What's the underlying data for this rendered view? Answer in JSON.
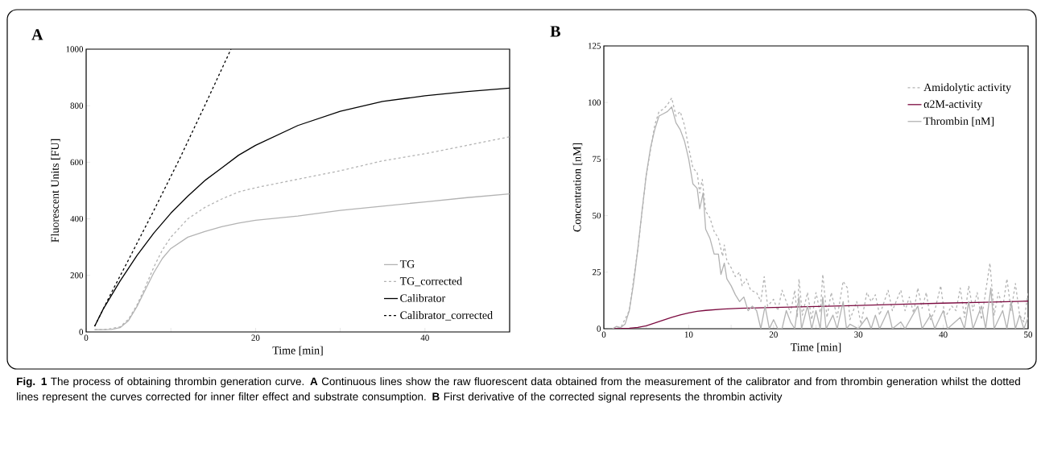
{
  "chart_data": [
    {
      "type": "line",
      "title": "A",
      "xlabel": "Time [min]",
      "ylabel": "Fluorescent Units [FU]",
      "xlim": [
        0,
        50
      ],
      "xticks": [
        0,
        20,
        40,
        {
          "value": 10,
          "label": null
        },
        {
          "value": 30,
          "label": null
        }
      ],
      "ylim": [
        0,
        1000
      ],
      "yticks": [
        0,
        200,
        400,
        600,
        800,
        1000
      ],
      "legend": "bottom right",
      "series": [
        {
          "name": "TG",
          "color": "#b3b3b3",
          "line_style": "solid",
          "x": [
            1,
            2,
            3,
            4,
            5,
            6,
            7,
            8,
            9,
            10,
            12,
            14,
            16,
            18,
            20,
            25,
            30,
            35,
            40,
            45,
            50
          ],
          "values": [
            8,
            8,
            9,
            15,
            40,
            90,
            150,
            210,
            260,
            295,
            335,
            355,
            372,
            385,
            395,
            410,
            430,
            445,
            460,
            475,
            488
          ]
        },
        {
          "name": "TG_corrected",
          "color": "#b3b3b3",
          "line_style": "dashed",
          "x": [
            1,
            2,
            3,
            4,
            5,
            6,
            7,
            8,
            9,
            10,
            12,
            14,
            16,
            18,
            20,
            25,
            30,
            35,
            40,
            45,
            50
          ],
          "values": [
            8,
            8,
            12,
            18,
            45,
            95,
            160,
            230,
            290,
            335,
            400,
            440,
            470,
            495,
            510,
            540,
            570,
            605,
            630,
            660,
            690
          ]
        },
        {
          "name": "Calibrator",
          "color": "#000000",
          "line_style": "solid",
          "x": [
            1,
            2,
            4,
            6,
            8,
            10,
            12,
            14,
            16,
            18,
            20,
            25,
            30,
            35,
            40,
            45,
            50
          ],
          "values": [
            20,
            80,
            180,
            270,
            350,
            420,
            480,
            535,
            580,
            625,
            660,
            730,
            780,
            815,
            835,
            850,
            862
          ]
        },
        {
          "name": "Calibrator_corrected",
          "color": "#000000",
          "line_style": "dashed",
          "x": [
            1,
            3,
            5,
            8,
            11,
            14,
            17.1
          ],
          "values": [
            20,
            140,
            255,
            430,
            610,
            800,
            1000
          ]
        }
      ],
      "annotations": [
        "**Fig. 1** The process of obtaining thrombin generation curve. **A** Continuous lines show the raw fluorescent data obtained from the measurement of the calibrator and from thrombin generation whilst the dotted lines represent the curves corrected for inner filter effect and substrate consumption. **B** First derivative of the corrected signal represents the thrombin activity"
      ]
    },
    {
      "type": "line",
      "title": "B",
      "xlabel": "Time [min]",
      "ylabel": "Concentration [nM]",
      "xlim": [
        0,
        50
      ],
      "xticks": [
        0,
        10,
        20,
        30,
        40,
        50,
        {
          "value": 5,
          "label": null
        },
        {
          "value": 15,
          "label": null
        },
        {
          "value": 25,
          "label": null
        },
        {
          "value": 35,
          "label": null
        },
        {
          "value": 45,
          "label": null
        }
      ],
      "ylim": [
        0,
        125
      ],
      "yticks": [
        0,
        25,
        50,
        75,
        100,
        125
      ],
      "legend": "top right",
      "series": [
        {
          "name": "Amidolytic activity",
          "color": "#b3b3b3",
          "line_style": "dashed",
          "x": [
            1,
            2,
            3,
            4,
            5,
            6,
            6.5,
            7,
            7.5,
            8,
            8.5,
            9,
            9.5,
            10,
            10.5,
            11,
            11.3,
            11.6,
            12,
            12.5,
            13,
            13.5,
            14,
            14.2,
            14.5,
            15,
            15.5,
            16,
            16.3,
            16.8,
            17.3,
            18,
            18.5,
            18.9,
            19.3,
            20,
            20.5,
            21,
            21.5,
            22,
            22.5,
            22.8,
            23,
            23.4,
            24,
            24.5,
            25,
            25.5,
            25.8,
            26.3,
            26.8,
            27.5,
            28.2,
            28.7,
            29,
            29.8,
            30.3,
            31,
            31.5,
            32,
            32.5,
            33.5,
            34,
            35,
            35.5,
            36,
            36.5,
            37,
            37.5,
            38,
            38.5,
            39,
            39.7,
            40.2,
            41,
            41.5,
            42,
            42.5,
            43,
            43.5,
            44,
            44.5,
            45.5,
            46,
            46.5,
            47,
            47.5,
            48,
            48.5,
            49,
            49.5,
            50
          ],
          "values": [
            0,
            0.5,
            8,
            35,
            68,
            90,
            96,
            97,
            99,
            102,
            94,
            96,
            90,
            80,
            71,
            69,
            60,
            66,
            52,
            49,
            43,
            40,
            32,
            37,
            30,
            27,
            23,
            25,
            19,
            22,
            17,
            16,
            12,
            23,
            10,
            13,
            8,
            17,
            12,
            7,
            17,
            5,
            22,
            6,
            16,
            4,
            16,
            7,
            24,
            5,
            16,
            5,
            21,
            18,
            4,
            12,
            2,
            16,
            12,
            15,
            6,
            17,
            8,
            17,
            8,
            14,
            7,
            18,
            9,
            16,
            4,
            8,
            19,
            5,
            10,
            8,
            18,
            5,
            19,
            8,
            16,
            4,
            29,
            6,
            16,
            9,
            22,
            8,
            20,
            6,
            3,
            16
          ]
        },
        {
          "name": "α2M-activity",
          "color": "#7b0a3f",
          "line_style": "solid",
          "x": [
            1,
            3,
            4,
            5,
            6,
            7,
            8,
            9,
            10,
            11,
            12,
            14,
            16,
            18,
            20,
            25,
            30,
            35,
            40,
            45,
            50
          ],
          "values": [
            0,
            0.2,
            0.6,
            1.3,
            2.5,
            3.8,
            5,
            6.1,
            7,
            7.7,
            8.1,
            8.7,
            9,
            9.2,
            9.4,
            9.8,
            10.3,
            10.8,
            11.3,
            11.7,
            12.2
          ]
        },
        {
          "name": "Thrombin [nM]",
          "color": "#b3b3b3",
          "line_style": "solid",
          "x": [
            1,
            1.5,
            2,
            2.5,
            3,
            3.5,
            4,
            4.5,
            5,
            5.5,
            6,
            6.5,
            7,
            7.5,
            8,
            8.5,
            9,
            9.5,
            10,
            10.5,
            11,
            11.3,
            11.7,
            12,
            12.5,
            13,
            13.5,
            13.8,
            14.2,
            14.5,
            15,
            15.5,
            16,
            16.5,
            17,
            17.5,
            18,
            18.5,
            19,
            19.5,
            20,
            20.5,
            21,
            21.5,
            22,
            22.5,
            23,
            23.3,
            24,
            24.5,
            25,
            25.5,
            25.8,
            26.2,
            27,
            27.5,
            28.2,
            28.6,
            29,
            30,
            31,
            31.5,
            32,
            32.5,
            33.5,
            34,
            35,
            35.5,
            37,
            37.5,
            38.5,
            39,
            40,
            40.5,
            42,
            42.5,
            43,
            43.5,
            44.5,
            45,
            45.6,
            46,
            47,
            47.5,
            48,
            48.5,
            49,
            49.5,
            50
          ],
          "values": [
            0,
            1,
            0.5,
            2,
            8,
            20,
            35,
            52,
            68,
            80,
            88,
            94,
            95,
            96,
            98,
            91,
            88,
            83,
            75,
            64,
            62,
            53,
            60,
            44,
            40,
            33,
            33,
            24,
            29,
            22,
            19,
            15,
            12,
            14,
            8,
            10,
            8,
            0,
            10,
            0,
            4,
            0,
            0,
            8,
            3,
            0,
            14,
            0,
            10,
            0,
            8,
            0,
            14,
            0,
            6,
            0,
            12,
            0,
            2,
            0,
            5,
            0,
            6,
            0,
            8,
            0,
            3,
            0,
            10,
            0,
            6,
            0,
            8,
            0,
            5,
            0,
            12,
            0,
            10,
            0,
            18,
            0,
            8,
            0,
            12,
            0,
            6,
            0,
            5
          ]
        }
      ]
    }
  ]
}
